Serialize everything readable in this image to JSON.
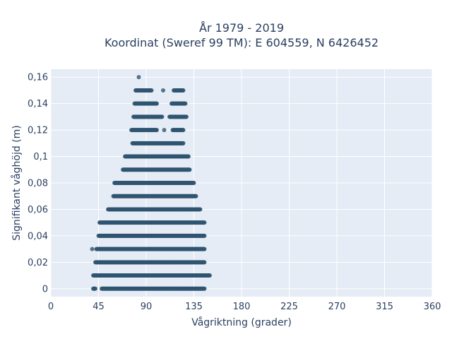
{
  "chart_data": {
    "type": "scatter",
    "title_lines": [
      "År 1979 - 2019",
      "Koordinat (Sweref 99 TM): E 604559, N 6426452"
    ],
    "xlabel": "Vågriktning (grader)",
    "ylabel": "Signifikant våghöjd (m)",
    "xlim": [
      0,
      360
    ],
    "ylim": [
      -0.006,
      0.166
    ],
    "x_ticks": [
      0,
      45,
      90,
      135,
      180,
      225,
      270,
      315,
      360
    ],
    "x_tick_labels": [
      "0",
      "45",
      "90",
      "135",
      "180",
      "225",
      "270",
      "315",
      "360"
    ],
    "y_ticks": [
      0,
      0.02,
      0.04,
      0.06,
      0.08,
      0.1,
      0.12,
      0.14,
      0.16
    ],
    "y_tick_labels": [
      "0",
      "0,02",
      "0,04",
      "0,06",
      "0,08",
      "0,1",
      "0,12",
      "0,14",
      "0,16"
    ],
    "grid": true,
    "marker_color": "#2f5570",
    "background_color": "#e5ecf6",
    "bands": [
      {
        "y": 0.0,
        "segments": [
          [
            40,
            42
          ],
          [
            48,
            145
          ]
        ]
      },
      {
        "y": 0.01,
        "segments": [
          [
            40,
            150
          ]
        ]
      },
      {
        "y": 0.02,
        "segments": [
          [
            42,
            145
          ]
        ]
      },
      {
        "y": 0.03,
        "segments": [
          [
            39,
            39
          ],
          [
            43,
            145
          ]
        ]
      },
      {
        "y": 0.04,
        "segments": [
          [
            45,
            145
          ]
        ]
      },
      {
        "y": 0.05,
        "segments": [
          [
            46,
            145
          ]
        ]
      },
      {
        "y": 0.06,
        "segments": [
          [
            54,
            141
          ]
        ]
      },
      {
        "y": 0.07,
        "segments": [
          [
            59,
            137
          ]
        ]
      },
      {
        "y": 0.08,
        "segments": [
          [
            60,
            135
          ]
        ]
      },
      {
        "y": 0.09,
        "segments": [
          [
            68,
            131
          ]
        ]
      },
      {
        "y": 0.1,
        "segments": [
          [
            70,
            130
          ]
        ]
      },
      {
        "y": 0.11,
        "segments": [
          [
            77,
            125
          ]
        ]
      },
      {
        "y": 0.12,
        "segments": [
          [
            76,
            100
          ],
          [
            107,
            107
          ],
          [
            115,
            125
          ]
        ]
      },
      {
        "y": 0.13,
        "segments": [
          [
            78,
            105
          ],
          [
            112,
            128
          ]
        ]
      },
      {
        "y": 0.14,
        "segments": [
          [
            79,
            100
          ],
          [
            114,
            127
          ]
        ]
      },
      {
        "y": 0.15,
        "segments": [
          [
            80,
            95
          ],
          [
            106,
            106
          ],
          [
            116,
            125
          ]
        ]
      },
      {
        "y": 0.16,
        "segments": [
          [
            83,
            83
          ]
        ]
      }
    ]
  }
}
